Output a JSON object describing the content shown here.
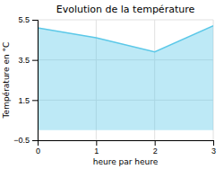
{
  "chart_data": {
    "type": "area",
    "title": "Evolution de la température",
    "xlabel": "heure par heure",
    "ylabel": "Température en °C",
    "x": [
      0,
      1,
      2,
      3
    ],
    "values": [
      5.1,
      4.6,
      3.9,
      5.2
    ],
    "xlim": [
      0,
      3
    ],
    "ylim": [
      -0.5,
      5.5
    ],
    "xticks": [
      0,
      1,
      2,
      3
    ],
    "yticks": [
      -0.5,
      1.5,
      3.5,
      5.5
    ],
    "color": "#5bc8e8",
    "grid": true
  }
}
